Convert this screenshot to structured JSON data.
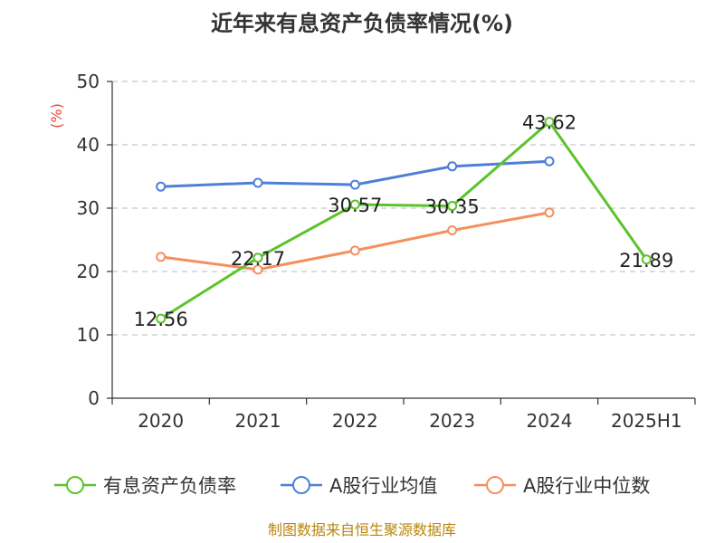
{
  "chart_data": {
    "type": "line",
    "title": "近年来有息资产负债率情况(%)",
    "ylabel": "(%)",
    "xlabel": "",
    "ylim": [
      0,
      50
    ],
    "yticks": [
      0,
      10,
      20,
      30,
      40,
      50
    ],
    "grid": true,
    "legend_position": "bottom",
    "categories": [
      "2020",
      "2021",
      "2022",
      "2023",
      "2024",
      "2025H1"
    ],
    "series": [
      {
        "name": "有息资产负债率",
        "color": "#5cc42a",
        "show_labels": true,
        "values": [
          12.56,
          22.17,
          30.57,
          30.35,
          43.62,
          21.89
        ]
      },
      {
        "name": "A股行业均值",
        "color": "#4e7fd8",
        "show_labels": false,
        "values": [
          33.4,
          34.0,
          33.7,
          36.6,
          37.4,
          null
        ]
      },
      {
        "name": "A股行业中位数",
        "color": "#f4905e",
        "show_labels": false,
        "values": [
          22.3,
          20.3,
          23.3,
          26.5,
          29.3,
          null
        ]
      }
    ],
    "source": "制图数据来自恒生聚源数据库"
  }
}
